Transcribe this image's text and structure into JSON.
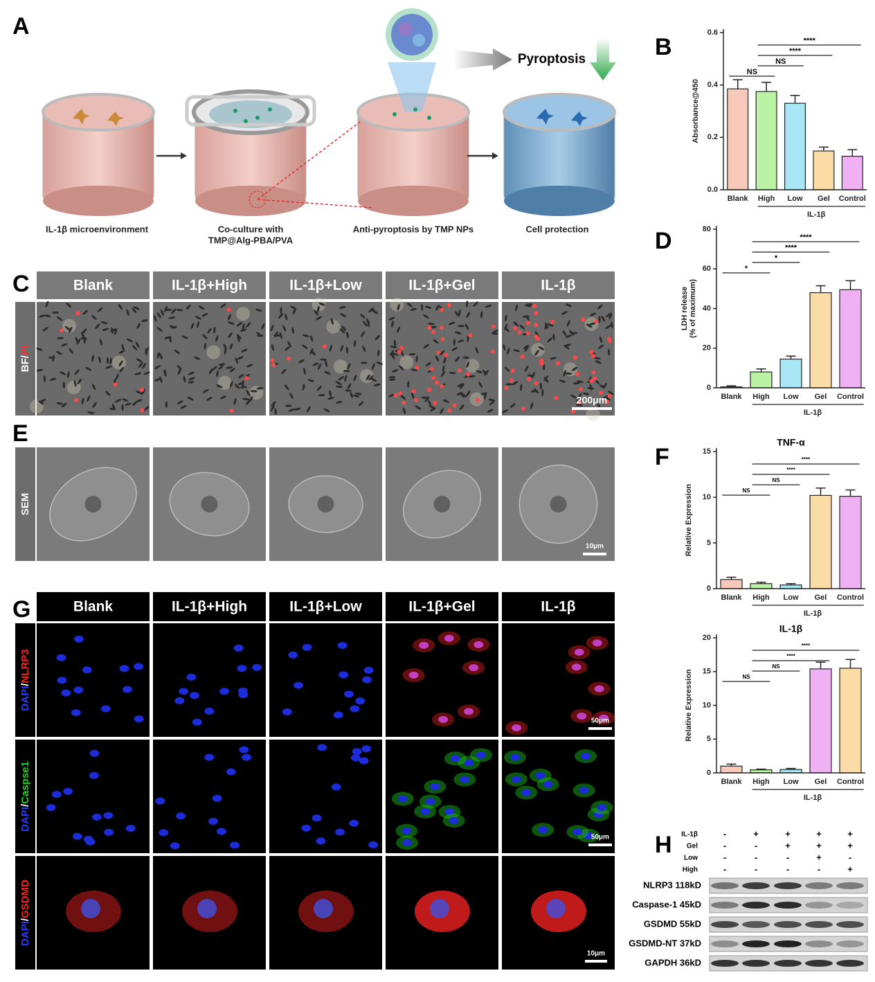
{
  "panel_labels": [
    "A",
    "B",
    "C",
    "D",
    "E",
    "F",
    "G",
    "H"
  ],
  "panel_a": {
    "steps": [
      [
        "IL-1β microenvironment"
      ],
      [
        "Co-culture with",
        "TMP@Alg-PBA/PVA"
      ],
      [
        "Anti-pyroptosis by TMP NPs"
      ],
      [
        "Cell protection"
      ]
    ],
    "outcome": "Pyroptosis"
  },
  "chart_data": [
    {
      "type": "bar",
      "y_label": [
        "Absorbance@450"
      ],
      "categories": [
        "Blank",
        "High",
        "Low",
        "Gel",
        "Control"
      ],
      "group_label": "IL-1β",
      "group_span": [
        "High",
        "Control"
      ],
      "values": [
        0.385,
        0.375,
        0.33,
        0.148,
        0.128
      ],
      "errors": [
        0.035,
        0.035,
        0.03,
        0.015,
        0.025
      ],
      "colors": [
        "#f8c8b8",
        "#b8f2a2",
        "#a8e6f6",
        "#fcdca6",
        "#f0b0f4"
      ],
      "ylim": [
        0,
        0.6
      ],
      "yticks": [
        {
          "value": 0,
          "label": "0.0"
        },
        0.2,
        0.4,
        0.6
      ],
      "significance": [
        {
          "between": [
            "Blank",
            "High"
          ],
          "label": "NS"
        },
        {
          "between": [
            "High",
            "Low"
          ],
          "label": "NS"
        },
        {
          "between": [
            "High",
            "Gel"
          ],
          "label": "****"
        },
        {
          "between": [
            "High",
            "Control"
          ],
          "label": "****"
        }
      ]
    },
    {
      "type": "bar",
      "y_label": [
        "LDH release",
        "(% of maximum)"
      ],
      "categories": [
        "Blank",
        "High",
        "Low",
        "Gel",
        "Control"
      ],
      "group_label": "IL-1β",
      "group_span": [
        "High",
        "Control"
      ],
      "values": [
        0.5,
        8,
        14.5,
        48,
        49.5
      ],
      "errors": [
        0.5,
        1.5,
        1.5,
        3.5,
        4.5
      ],
      "colors": [
        "#f8c8b8",
        "#b8f2a2",
        "#a8e6f6",
        "#fcdca6",
        "#f0b0f4"
      ],
      "ylim": [
        0,
        80
      ],
      "yticks": [
        0,
        20,
        40,
        60,
        80
      ],
      "significance": [
        {
          "between": [
            "Blank",
            "High"
          ],
          "label": "*"
        },
        {
          "between": [
            "High",
            "Low"
          ],
          "label": "*"
        },
        {
          "between": [
            "High",
            "Gel"
          ],
          "label": "****"
        },
        {
          "between": [
            "High",
            "Control"
          ],
          "label": "****"
        }
      ]
    },
    {
      "type": "bar",
      "title": "TNF-α",
      "y_label": [
        "Relative Expression"
      ],
      "categories": [
        "Blank",
        "High",
        "Low",
        "Gel",
        "Control"
      ],
      "group_label": "IL-1β",
      "group_span": [
        "High",
        "Control"
      ],
      "values": [
        1.0,
        0.55,
        0.4,
        10.2,
        10.1
      ],
      "errors": [
        0.25,
        0.15,
        0.15,
        0.8,
        0.7
      ],
      "colors": [
        "#f8c8b8",
        "#b8f2a2",
        "#a8e6f6",
        "#fcdca6",
        "#f0b0f4"
      ],
      "ylim": [
        0,
        15
      ],
      "yticks": [
        0,
        5,
        10,
        15
      ],
      "significance": [
        {
          "between": [
            "Blank",
            "High"
          ],
          "label": "NS"
        },
        {
          "between": [
            "High",
            "Low"
          ],
          "label": "NS"
        },
        {
          "between": [
            "High",
            "Gel"
          ],
          "label": "****"
        },
        {
          "between": [
            "High",
            "Control"
          ],
          "label": "****"
        }
      ]
    },
    {
      "type": "bar",
      "title": "IL-1β",
      "y_label": [
        "Relative Expression"
      ],
      "categories": [
        "Blank",
        "High",
        "Low",
        "Gel",
        "Control"
      ],
      "group_label": "IL-1β",
      "group_span": [
        "High",
        "Control"
      ],
      "values": [
        1.0,
        0.45,
        0.5,
        15.4,
        15.5
      ],
      "errors": [
        0.3,
        0.1,
        0.15,
        1.0,
        1.3
      ],
      "colors": [
        "#f8c8b8",
        "#b8f2a2",
        "#a8e6f6",
        "#f0b0f4",
        "#fcdca6"
      ],
      "ylim": [
        0,
        20
      ],
      "yticks": [
        0,
        5,
        10,
        15,
        20
      ],
      "significance": [
        {
          "between": [
            "Blank",
            "High"
          ],
          "label": "NS"
        },
        {
          "between": [
            "High",
            "Low"
          ],
          "label": "NS"
        },
        {
          "between": [
            "High",
            "Gel"
          ],
          "label": "****"
        },
        {
          "between": [
            "High",
            "Control"
          ],
          "label": "****"
        }
      ]
    }
  ],
  "panel_c": {
    "columns": [
      "Blank",
      "IL-1β+High",
      "IL-1β+Low",
      "IL-1β+Gel",
      "IL-1β"
    ],
    "row_label": [
      "BF",
      "/",
      "PI"
    ],
    "row_label_colors": [
      "#ffffff",
      "#ffffff",
      "#ff3030"
    ],
    "scale_bar": "200μm"
  },
  "panel_e": {
    "row_label": "SEM",
    "scale_bar": "10μm"
  },
  "panel_g": {
    "columns": [
      "Blank",
      "IL-1β+High",
      "IL-1β+Low",
      "IL-1β+Gel",
      "IL-1β"
    ],
    "rows": [
      {
        "label": [
          "DAPI",
          "/",
          "NLRP3"
        ],
        "label_colors": [
          "#2a3cff",
          "#ffffff",
          "#ff2020"
        ],
        "scale_bar": "50μm"
      },
      {
        "label": [
          "DAPI",
          "/",
          "Caspse1"
        ],
        "label_colors": [
          "#2a3cff",
          "#ffffff",
          "#20d020"
        ],
        "scale_bar": "50μm"
      },
      {
        "label": [
          "DAPI",
          "/",
          "GSDMD"
        ],
        "label_colors": [
          "#2a3cff",
          "#ffffff",
          "#ff2020"
        ],
        "scale_bar": "10μm"
      }
    ]
  },
  "panel_h": {
    "conditions": [
      {
        "name": "IL-1β",
        "signs": [
          "-",
          "+",
          "+",
          "+",
          "+"
        ]
      },
      {
        "name": "Gel",
        "signs": [
          "-",
          "-",
          "+",
          "+",
          "+"
        ]
      },
      {
        "name": "Low",
        "signs": [
          "-",
          "-",
          "-",
          "+",
          "-"
        ]
      },
      {
        "name": "High",
        "signs": [
          "-",
          "-",
          "-",
          "-",
          "+"
        ]
      }
    ],
    "bands": [
      "NLRP3 118kD",
      "Caspase-1 45kD",
      "GSDMD 55kD",
      "GSDMD-NT 37kD",
      "GAPDH 36kD"
    ]
  }
}
